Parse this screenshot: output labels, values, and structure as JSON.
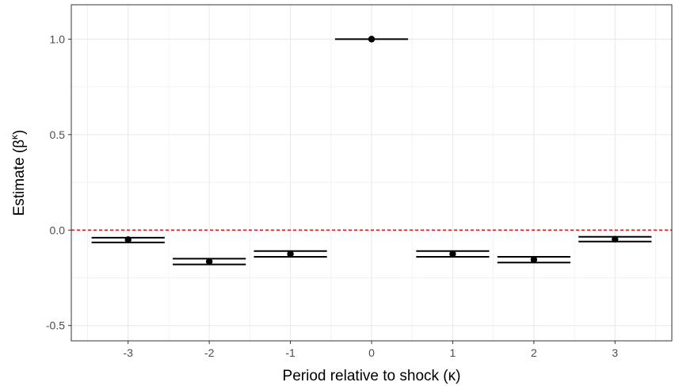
{
  "chart_data": {
    "type": "scatter",
    "xlabel": "Period relative to shock (κ)",
    "ylabel_main": "Estimate (β",
    "ylabel_sup": "κ",
    "ylabel_close": ")",
    "x": [
      -3,
      -2,
      -1,
      0,
      1,
      2,
      3
    ],
    "x_tick_labels": [
      "-3",
      "-2",
      "-1",
      "0",
      "1",
      "2",
      "3"
    ],
    "estimates": [
      -0.05,
      -0.165,
      -0.125,
      1.0,
      -0.125,
      -0.155,
      -0.048
    ],
    "ci_upper": [
      -0.04,
      -0.15,
      -0.11,
      1.0,
      -0.11,
      -0.14,
      -0.035
    ],
    "ci_lower": [
      -0.065,
      -0.18,
      -0.14,
      1.0,
      -0.14,
      -0.17,
      -0.06
    ],
    "xlim": [
      -3.7,
      3.7
    ],
    "ylim": [
      -0.58,
      1.18
    ],
    "y_ticks": [
      -0.5,
      0.0,
      0.5,
      1.0
    ],
    "y_tick_labels": [
      "-0.5",
      "0.0",
      "0.5",
      "1.0"
    ],
    "reference_line": {
      "y": 0,
      "color": "#e41a1c",
      "style": "dashed"
    },
    "grid": true,
    "theme": "bw"
  }
}
